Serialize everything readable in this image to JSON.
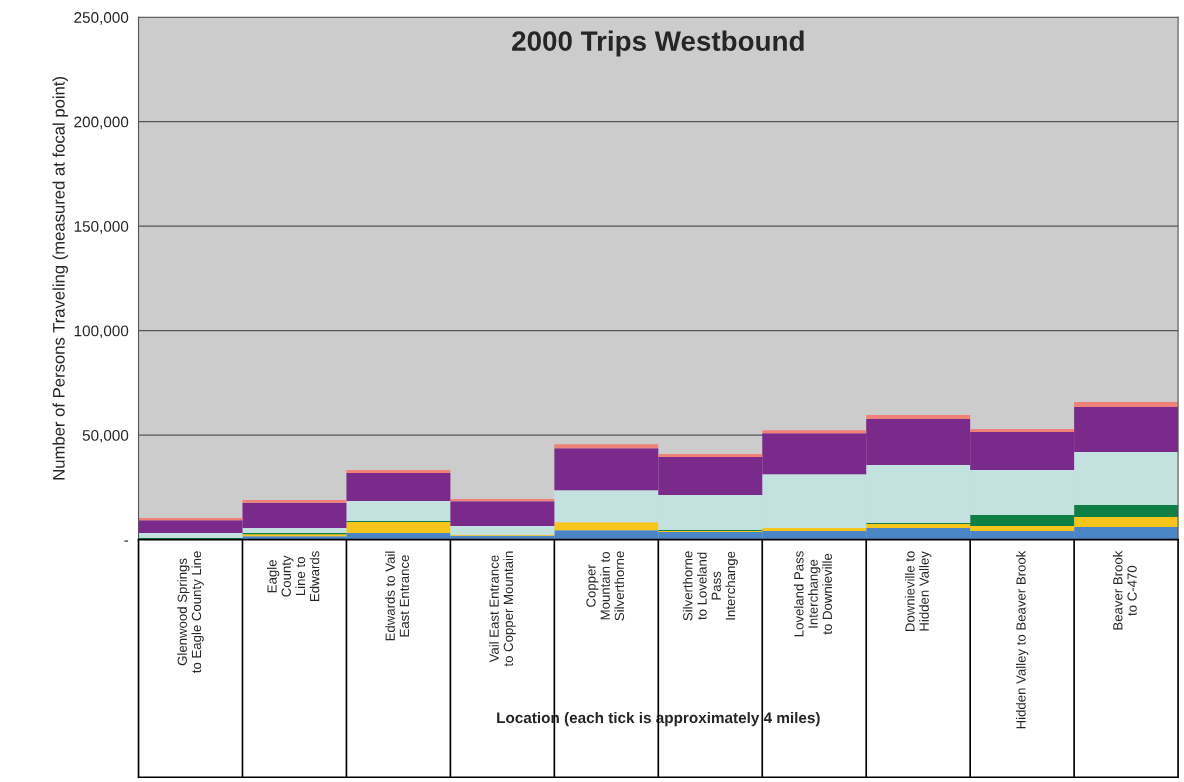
{
  "chart_data": {
    "type": "bar",
    "stacked": true,
    "title": "2000 Trips Westbound",
    "xlabel": "Location (each tick is approximately 4 miles)",
    "ylabel": "Number of Persons Traveling (measured at focal point)",
    "categories": [
      "Glenwood Springs\nto Eagle County Line",
      "Eagle\nCounty\nLine to\nEdwards",
      "Edwards to Vail\nEast Entrance",
      "Vail East Entrance\nto Copper Mountain",
      "Copper\nMountain to\nSilverthorne",
      "Silverthorne\nto Loveland\nPass\nInterchange",
      "Loveland Pass\nInterchange\nto Downieville",
      "Downieville to\nHidden Valley",
      "Hidden Valley to Beaver Brook",
      "Beaver Brook\nto C-470"
    ],
    "series": [
      {
        "color": "#4a86c6",
        "values": [
          null,
          1600,
          3100,
          1800,
          4500,
          3600,
          4100,
          5500,
          4100,
          6000
        ]
      },
      {
        "color": "#f8c51c",
        "values": [
          null,
          1000,
          5300,
          500,
          3800,
          500,
          1400,
          1900,
          2400,
          4800
        ]
      },
      {
        "color": "#107f45",
        "values": [
          700,
          500,
          500,
          0,
          0,
          500,
          0,
          500,
          5300,
          5700
        ]
      },
      {
        "color": "#c3e1df",
        "values": [
          2400,
          2400,
          9600,
          4200,
          15300,
          16700,
          25800,
          27800,
          21500,
          25400
        ]
      },
      {
        "color": "#7a2a8a",
        "values": [
          6200,
          12100,
          13400,
          11900,
          20100,
          18200,
          19600,
          22000,
          18200,
          21500
        ]
      },
      {
        "color": "#ef8178",
        "values": [
          1000,
          1300,
          1400,
          1000,
          1900,
          1400,
          1400,
          1900,
          1400,
          2400
        ]
      }
    ],
    "ylim": [
      0,
      250000
    ],
    "yticks": [
      {
        "value": 0,
        "label": "-"
      },
      {
        "value": 50000,
        "label": "50,000"
      },
      {
        "value": 100000,
        "label": "100,000"
      },
      {
        "value": 150000,
        "label": "150,000"
      },
      {
        "value": 200000,
        "label": "200,000"
      },
      {
        "value": 250000,
        "label": "250,000"
      }
    ],
    "grid": "y",
    "legend": false
  }
}
